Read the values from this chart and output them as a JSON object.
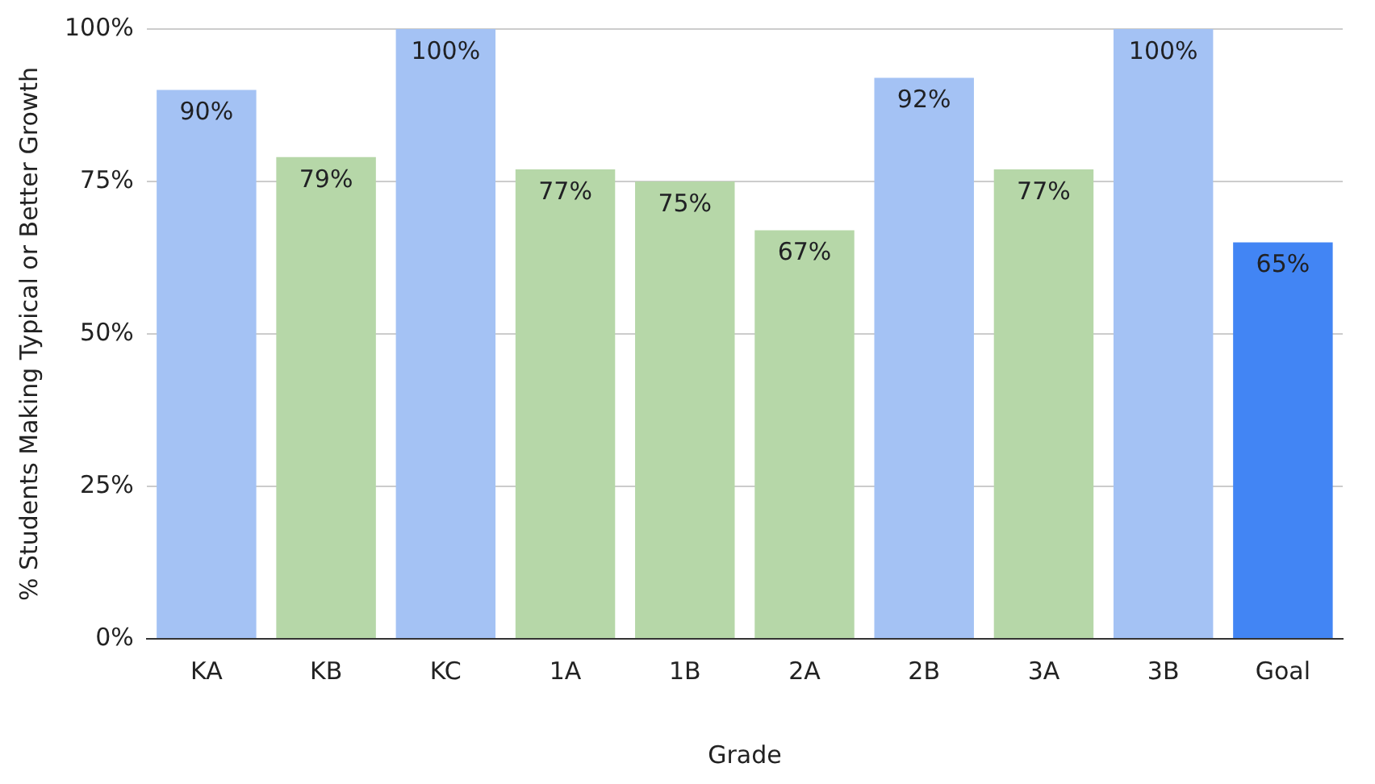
{
  "chart_data": {
    "type": "bar",
    "xlabel": "Grade",
    "ylabel": "% Students Making Typical or Better Growth",
    "categories": [
      "KA",
      "KB",
      "KC",
      "1A",
      "1B",
      "2A",
      "2B",
      "3A",
      "3B",
      "Goal"
    ],
    "values": [
      90,
      79,
      100,
      77,
      75,
      67,
      92,
      77,
      100,
      65
    ],
    "colors": [
      "#a4c2f4",
      "#b6d7a8",
      "#a4c2f4",
      "#b6d7a8",
      "#b6d7a8",
      "#b6d7a8",
      "#a4c2f4",
      "#b6d7a8",
      "#a4c2f4",
      "#4285f4"
    ],
    "value_labels": [
      "90%",
      "79%",
      "100%",
      "77%",
      "75%",
      "67%",
      "92%",
      "77%",
      "100%",
      "65%"
    ],
    "ylim": [
      0,
      100
    ],
    "yticks": [
      {
        "value": 0,
        "label": "0%"
      },
      {
        "value": 25,
        "label": "25%"
      },
      {
        "value": 50,
        "label": "50%"
      },
      {
        "value": 75,
        "label": "75%"
      },
      {
        "value": 100,
        "label": "100%"
      }
    ],
    "grid": "y",
    "legend": false
  }
}
